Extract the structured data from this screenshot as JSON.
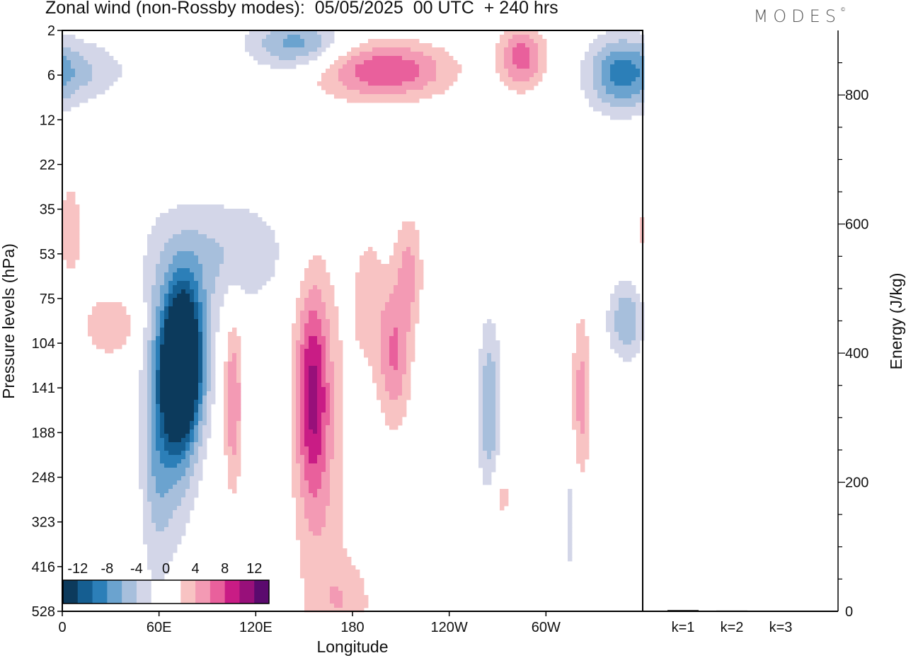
{
  "header": {
    "title": "Zonal wind (non-Rossby modes):  05/05/2025  00 UTC  + 240 hrs",
    "brand": "MODES"
  },
  "colors": {
    "neg": [
      "#0c3a5c",
      "#155e91",
      "#2c7fb8",
      "#6ba3cf",
      "#a7bfdc",
      "#d3d6e8"
    ],
    "zero": "#ffffff",
    "pos": [
      "#f8c3c3",
      "#f39ab4",
      "#e9609c",
      "#c91c85",
      "#98107a",
      "#5b0a6e"
    ]
  },
  "chart_data": [
    {
      "type": "heatmap",
      "title": "Zonal wind (non-Rossby modes):  05/05/2025  00 UTC  + 240 hrs",
      "xlabel": "Longitude",
      "ylabel": "Pressure levels (hPa)",
      "x_ticks": [
        "0",
        "60E",
        "120E",
        "180",
        "120W",
        "60W"
      ],
      "x_tick_degrees": [
        0,
        60,
        120,
        180,
        240,
        300
      ],
      "xlim": [
        0,
        360
      ],
      "y_ticks": [
        "2",
        "6",
        "12",
        "22",
        "35",
        "53",
        "75",
        "104",
        "141",
        "188",
        "248",
        "323",
        "416",
        "528"
      ],
      "colorbar_labels": [
        "-12",
        "-8",
        "-4",
        "0",
        "4",
        "8",
        "12"
      ],
      "colorbar_levels": [
        -14,
        -12,
        -10,
        -8,
        -6,
        -4,
        -2,
        2,
        4,
        6,
        8,
        10,
        12,
        14
      ],
      "features": [
        {
          "lon": 72,
          "level": 7.6,
          "value": -14,
          "dlon": 6,
          "dlev": 0.9
        },
        {
          "lon": 78,
          "level": 7.2,
          "value": -11,
          "dlon": 9,
          "dlev": 1.2
        },
        {
          "lon": 70,
          "level": 8.3,
          "value": -8,
          "dlon": 10,
          "dlev": 1.8
        },
        {
          "lon": 58,
          "level": 9.2,
          "value": -4,
          "dlon": 7,
          "dlev": 2.5
        },
        {
          "lon": 155,
          "level": 8.1,
          "value": 8,
          "dlon": 7,
          "dlev": 1.6
        },
        {
          "lon": 160,
          "level": 9.5,
          "value": 3.5,
          "dlon": 12,
          "dlev": 3.5
        },
        {
          "lon": 106,
          "level": 8.3,
          "value": 6,
          "dlon": 4,
          "dlev": 1.4
        },
        {
          "lon": 206,
          "level": 7.3,
          "value": 6,
          "dlon": 7,
          "dlev": 1.1
        },
        {
          "lon": 190,
          "level": 6.0,
          "value": 3,
          "dlon": 8,
          "dlev": 1.2
        },
        {
          "lon": 215,
          "level": 5.4,
          "value": 4.5,
          "dlon": 6,
          "dlev": 0.9
        },
        {
          "lon": 200,
          "level": 0.9,
          "value": 8,
          "dlon": 28,
          "dlev": 0.45
        },
        {
          "lon": 285,
          "level": 0.6,
          "value": 7,
          "dlon": 10,
          "dlev": 0.5
        },
        {
          "lon": 345,
          "level": 1.0,
          "value": -7,
          "dlon": 14,
          "dlev": 0.6
        },
        {
          "lon": 145,
          "level": 0.3,
          "value": -7,
          "dlon": 20,
          "dlev": 0.4
        },
        {
          "lon": 10,
          "level": 0.9,
          "value": -4,
          "dlon": 22,
          "dlev": 0.5
        },
        {
          "lon": 100,
          "level": 5.0,
          "value": -4,
          "dlon": 30,
          "dlev": 0.9
        },
        {
          "lon": 30,
          "level": 6.6,
          "value": 4,
          "dlon": 12,
          "dlev": 0.5
        },
        {
          "lon": 350,
          "level": 6.5,
          "value": -6,
          "dlon": 8,
          "dlev": 0.6
        },
        {
          "lon": 265,
          "level": 8.5,
          "value": -6,
          "dlon": 5,
          "dlev": 1.4
        },
        {
          "lon": 322,
          "level": 8.2,
          "value": 5,
          "dlon": 4,
          "dlev": 1.3
        },
        {
          "lon": 177,
          "level": 12.8,
          "value": 3,
          "dlon": 12,
          "dlev": 0.7
        },
        {
          "lon": 272,
          "level": 10.4,
          "value": 3,
          "dlon": 5,
          "dlev": 0.6
        },
        {
          "lon": 5,
          "level": 4.5,
          "value": 4,
          "dlon": 5,
          "dlev": 0.8
        },
        {
          "lon": 315,
          "level": 11.0,
          "value": -3,
          "dlon": 3,
          "dlev": 1.0
        }
      ]
    },
    {
      "type": "bar",
      "categories": [
        "k=1",
        "k=2",
        "k=3"
      ],
      "values": [
        2,
        1.2,
        0.8
      ],
      "ylabel": "Energy (J/kg)",
      "y_ticks": [
        "0",
        "200",
        "400",
        "600",
        "800"
      ],
      "ylim": [
        0,
        900
      ]
    }
  ]
}
